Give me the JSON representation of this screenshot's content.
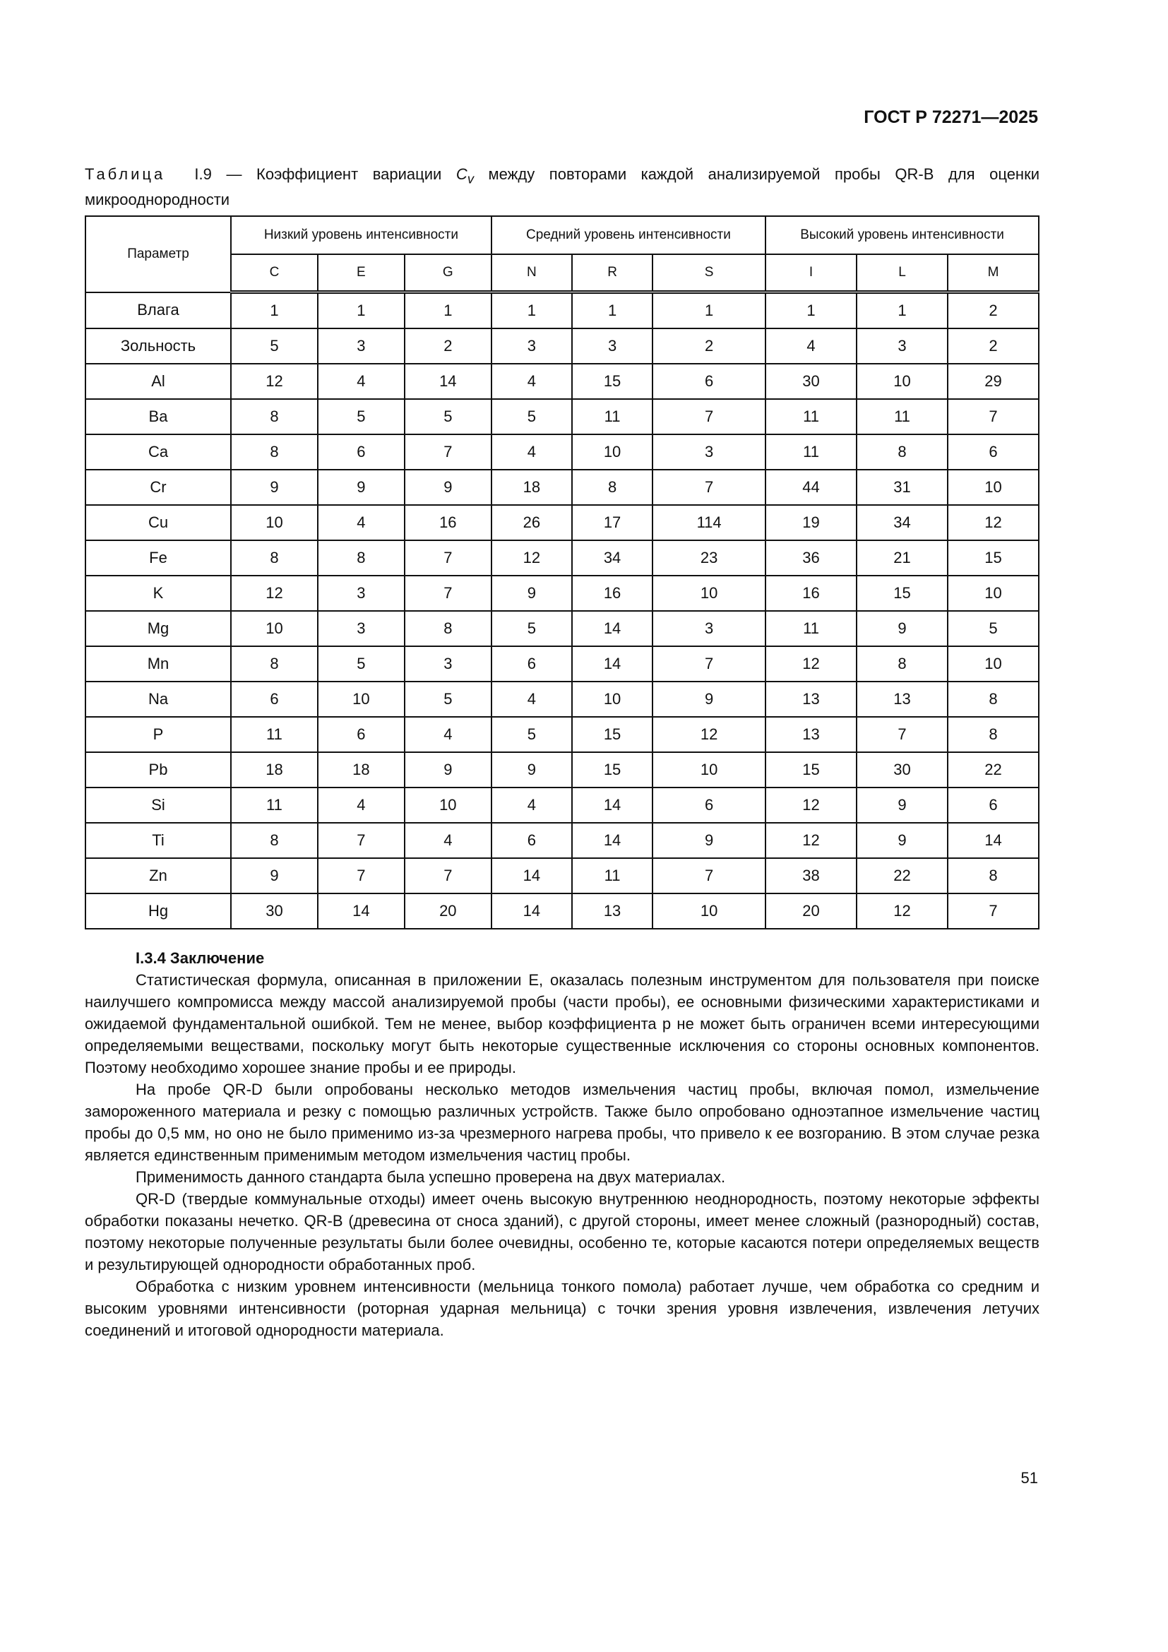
{
  "header": "ГОСТ Р 72271—2025",
  "caption": {
    "prefix": "Таблица",
    "number": "I.9 — Коэффициент вариации ",
    "symbol": "C",
    "subscript": "v",
    "rest": " между повторами каждой анализируемой пробы QR-B для оценки микрооднородности"
  },
  "table": {
    "param_header": "Параметр",
    "groups": [
      "Низкий уровень интенсивности",
      "Средний уровень интенсивности",
      "Высокий уровень интенсивности"
    ],
    "columns": [
      "C",
      "E",
      "G",
      "N",
      "R",
      "S",
      "I",
      "L",
      "M"
    ],
    "rows": [
      {
        "param": "Влага",
        "values": [
          "1",
          "1",
          "1",
          "1",
          "1",
          "1",
          "1",
          "1",
          "2"
        ]
      },
      {
        "param": "Зольность",
        "values": [
          "5",
          "3",
          "2",
          "3",
          "3",
          "2",
          "4",
          "3",
          "2"
        ]
      },
      {
        "param": "Al",
        "values": [
          "12",
          "4",
          "14",
          "4",
          "15",
          "6",
          "30",
          "10",
          "29"
        ]
      },
      {
        "param": "Ba",
        "values": [
          "8",
          "5",
          "5",
          "5",
          "11",
          "7",
          "11",
          "11",
          "7"
        ]
      },
      {
        "param": "Ca",
        "values": [
          "8",
          "6",
          "7",
          "4",
          "10",
          "3",
          "11",
          "8",
          "6"
        ]
      },
      {
        "param": "Cr",
        "values": [
          "9",
          "9",
          "9",
          "18",
          "8",
          "7",
          "44",
          "31",
          "10"
        ]
      },
      {
        "param": "Cu",
        "values": [
          "10",
          "4",
          "16",
          "26",
          "17",
          "114",
          "19",
          "34",
          "12"
        ]
      },
      {
        "param": "Fe",
        "values": [
          "8",
          "8",
          "7",
          "12",
          "34",
          "23",
          "36",
          "21",
          "15"
        ]
      },
      {
        "param": "K",
        "values": [
          "12",
          "3",
          "7",
          "9",
          "16",
          "10",
          "16",
          "15",
          "10"
        ]
      },
      {
        "param": "Mg",
        "values": [
          "10",
          "3",
          "8",
          "5",
          "14",
          "3",
          "11",
          "9",
          "5"
        ]
      },
      {
        "param": "Mn",
        "values": [
          "8",
          "5",
          "3",
          "6",
          "14",
          "7",
          "12",
          "8",
          "10"
        ]
      },
      {
        "param": "Na",
        "values": [
          "6",
          "10",
          "5",
          "4",
          "10",
          "9",
          "13",
          "13",
          "8"
        ]
      },
      {
        "param": "P",
        "values": [
          "11",
          "6",
          "4",
          "5",
          "15",
          "12",
          "13",
          "7",
          "8"
        ]
      },
      {
        "param": "Pb",
        "values": [
          "18",
          "18",
          "9",
          "9",
          "15",
          "10",
          "15",
          "30",
          "22"
        ]
      },
      {
        "param": "Si",
        "values": [
          "11",
          "4",
          "10",
          "4",
          "14",
          "6",
          "12",
          "9",
          "6"
        ]
      },
      {
        "param": "Ti",
        "values": [
          "8",
          "7",
          "4",
          "6",
          "14",
          "9",
          "12",
          "9",
          "14"
        ]
      },
      {
        "param": "Zn",
        "values": [
          "9",
          "7",
          "7",
          "14",
          "11",
          "7",
          "38",
          "22",
          "8"
        ]
      },
      {
        "param": "Hg",
        "values": [
          "30",
          "14",
          "20",
          "14",
          "13",
          "10",
          "20",
          "12",
          "7"
        ]
      }
    ]
  },
  "section": {
    "title": "I.3.4 Заключение",
    "paragraphs": [
      "Статистическая формула, описанная в приложении E, оказалась полезным инструментом для пользователя при поиске наилучшего компромисса между массой анализируемой пробы (части пробы), ее основными физическими характеристиками и ожидаемой фундаментальной ошибкой. Тем не менее, выбор коэффициента p не может быть ограничен всеми интересующими определяемыми веществами, поскольку могут быть некоторые существенные исключения со стороны основных компонентов. Поэтому необходимо хорошее знание пробы и ее природы.",
      "На пробе QR-D были опробованы несколько методов измельчения частиц пробы, включая помол, измельчение замороженного материала и резку с помощью различных устройств. Также было опробовано одноэтапное измельчение частиц пробы до 0,5 мм, но оно не было применимо из-за чрезмерного нагрева пробы, что привело к ее возгоранию. В этом случае резка является единственным применимым методом измельчения частиц пробы.",
      "Применимость данного стандарта была успешно проверена на двух материалах.",
      "QR-D (твердые коммунальные отходы) имеет очень высокую внутреннюю неоднородность, поэтому некоторые эффекты обработки показаны нечетко. QR-B (древесина от сноса зданий), с другой стороны, имеет менее сложный (разнородный) состав, поэтому некоторые полученные результаты были более очевидны, особенно те, которые касаются потери определяемых веществ и результирующей однородности обработанных проб.",
      "Обработка с низким уровнем интенсивности (мельница тонкого помола) работает лучше, чем обработка со средним и высоким уровнями интенсивности (роторная ударная мельница) с точки зрения уровня извлечения, извлечения летучих соединений и итоговой однородности материала."
    ]
  },
  "page_number": "51"
}
